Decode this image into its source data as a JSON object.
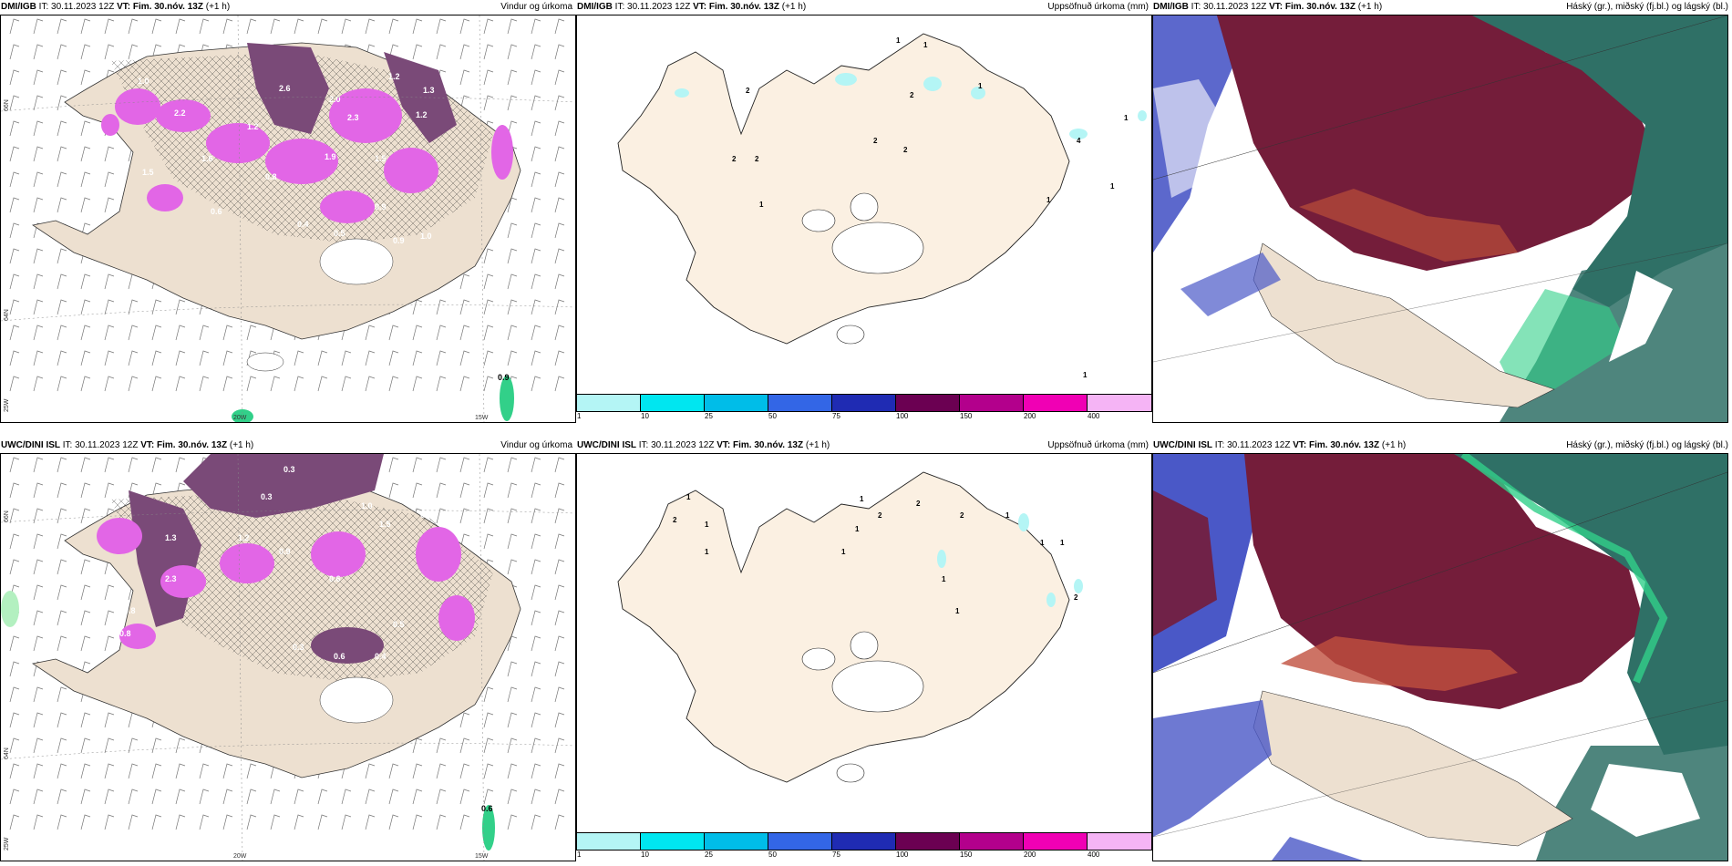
{
  "panels": [
    {
      "model": "DMI/IGB",
      "it_label": "IT:",
      "it": "30.11.2023 12Z",
      "vt_label": "VT:",
      "vt": "Fim. 30.nóv. 13Z",
      "lead": "(+1 h)",
      "product": "Vindur og úrkoma"
    },
    {
      "model": "DMI/IGB",
      "it_label": "IT:",
      "it": "30.11.2023 12Z",
      "vt_label": "VT:",
      "vt": "Fim. 30.nóv. 13Z",
      "lead": "(+1 h)",
      "product": "Uppsöfnuð úrkoma (mm)"
    },
    {
      "model": "DMI/IGB",
      "it_label": "IT:",
      "it": "30.11.2023 12Z",
      "vt_label": "VT:",
      "vt": "Fim. 30.nóv. 13Z",
      "lead": "(+1 h)",
      "product": "Háský (gr.), miðský (fj.bl.) og lágský (bl.)"
    },
    {
      "model": "UWC/DINI ISL",
      "it_label": "IT:",
      "it": "30.11.2023 12Z",
      "vt_label": "VT:",
      "vt": "Fim. 30.nóv. 13Z",
      "lead": "(+1 h)",
      "product": "Vindur og úrkoma"
    },
    {
      "model": "UWC/DINI ISL",
      "it_label": "IT:",
      "it": "30.11.2023 12Z",
      "vt_label": "VT:",
      "vt": "Fim. 30.nóv. 13Z",
      "lead": "(+1 h)",
      "product": "Uppsöfnuð úrkoma (mm)"
    },
    {
      "model": "UWC/DINI ISL",
      "it_label": "IT:",
      "it": "30.11.2023 12Z",
      "vt_label": "VT:",
      "vt": "Fim. 30.nóv. 13Z",
      "lead": "(+1 h)",
      "product": "Háský (gr.), miðský (fj.bl.) og lágský (bl.)"
    }
  ],
  "grid_labels": {
    "lat66": "66N",
    "lat64": "64N",
    "lon25": "25W",
    "lon20": "20W",
    "lon15": "15W"
  },
  "colorbar": {
    "ticks": [
      "1",
      "10",
      "25",
      "50",
      "75",
      "100",
      "150",
      "200",
      "400"
    ],
    "colors": [
      "#b4f5f5",
      "#00e6f0",
      "#00bde8",
      "#3366e6",
      "#1f2bb3",
      "#6b0052",
      "#b3008c",
      "#f000b4",
      "#f5b4f5"
    ]
  },
  "precip_labels_top_left": [
    "1.0",
    "2.2",
    "2.6",
    "1.2",
    "2.0",
    "1.3",
    "1.2",
    "1.9",
    "0.8",
    "1.6",
    "1.5",
    "1.5",
    "0.9",
    "0.4",
    "0.6",
    "0.5",
    "1.2",
    "2.3",
    "0.9",
    "1.0",
    "0.9"
  ],
  "precip_labels_bottom_left": [
    "0.3",
    "0.3",
    "1.3",
    "1.2",
    "0.9",
    "1.0",
    "1.5",
    "0.8",
    "0.8",
    "2.3",
    "0.3",
    "0.5",
    "0.6",
    "0.4",
    "0.6",
    "0.8",
    "0.6"
  ],
  "accum_labels_top": [
    "1",
    "2",
    "2",
    "2",
    "1",
    "2",
    "2",
    "1",
    "2",
    "1",
    "1",
    "1",
    "4",
    "1",
    "1"
  ],
  "accum_labels_bottom": [
    "2",
    "1",
    "1",
    "1",
    "1",
    "2",
    "1",
    "2",
    "2",
    "1",
    "1",
    "1",
    "1",
    "2",
    "1",
    "1"
  ],
  "colors": {
    "land": "#ede0d0",
    "land_accum": "#fbf0e2",
    "purple": "#e266e6",
    "darkpurple": "#7a4a78",
    "cloud_dark": "#741d3a",
    "cloud_teal": "#2f7066",
    "cloud_blue": "#4a58c7",
    "cloud_green": "#32d089"
  }
}
